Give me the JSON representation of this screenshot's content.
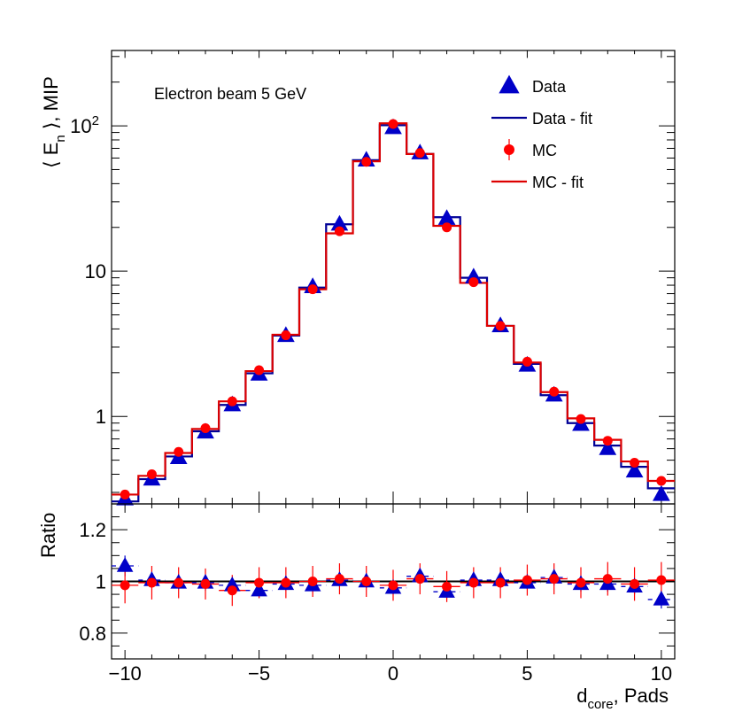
{
  "chart_data": [
    {
      "panel": "main",
      "type": "line",
      "scale": "log",
      "ylabel": "⟨ E",
      "ylabel_sub": "n",
      "ylabel_suffix": " ⟩, MIP",
      "annotation": "Electron beam 5 GeV",
      "xlim": [
        -10.5,
        10.5
      ],
      "ylim": [
        0.25,
        330
      ],
      "yticks": [
        {
          "value": 1,
          "label": "1"
        },
        {
          "value": 10,
          "label": "10"
        },
        {
          "value": 100,
          "label": "10",
          "sup": "2"
        }
      ],
      "x": [
        -10,
        -9,
        -8,
        -7,
        -6,
        -5,
        -4,
        -3,
        -2,
        -1,
        0,
        1,
        2,
        3,
        4,
        5,
        6,
        7,
        8,
        9,
        10
      ],
      "series": [
        {
          "name": "Data",
          "color": "#0000c8",
          "marker": "triangle",
          "values": [
            0.27,
            0.37,
            0.52,
            0.78,
            1.2,
            1.95,
            3.6,
            7.8,
            21,
            58,
            97,
            65,
            23,
            9.1,
            4.2,
            2.25,
            1.4,
            0.88,
            0.6,
            0.42,
            0.29
          ]
        },
        {
          "name": "Data - fit",
          "color": "#000096",
          "style": "step",
          "values": [
            0.26,
            0.37,
            0.53,
            0.79,
            1.2,
            1.98,
            3.6,
            7.7,
            21,
            58,
            101,
            64,
            23.5,
            9.0,
            4.2,
            2.3,
            1.4,
            0.9,
            0.63,
            0.45,
            0.32
          ]
        },
        {
          "name": "MC",
          "color": "#ff0000",
          "marker": "circle",
          "values": [
            0.29,
            0.4,
            0.57,
            0.83,
            1.27,
            2.08,
            3.62,
            7.5,
            18.8,
            56.5,
            103,
            65,
            20,
            8.4,
            4.2,
            2.38,
            1.48,
            0.96,
            0.68,
            0.48,
            0.36
          ]
        },
        {
          "name": "MC - fit",
          "color": "#dd0000",
          "style": "step",
          "values": [
            0.29,
            0.39,
            0.56,
            0.82,
            1.27,
            2.05,
            3.65,
            7.5,
            18.2,
            57,
            104,
            64,
            20.5,
            8.3,
            4.2,
            2.35,
            1.47,
            0.97,
            0.69,
            0.49,
            0.36
          ]
        }
      ],
      "legend": [
        "Data",
        "Data - fit",
        "MC",
        "MC - fit"
      ],
      "legend_position": "top-right"
    },
    {
      "panel": "ratio",
      "type": "scatter",
      "ylabel": "Ratio",
      "xlabel": "d",
      "xlabel_sub": "core",
      "xlabel_suffix": ", Pads",
      "xlim": [
        -10.5,
        10.5
      ],
      "ylim": [
        0.7,
        1.3
      ],
      "reference_line": 1,
      "xticks": [
        {
          "value": -10,
          "label": "−10"
        },
        {
          "value": -5,
          "label": "−5"
        },
        {
          "value": 0,
          "label": "0"
        },
        {
          "value": 5,
          "label": "5"
        },
        {
          "value": 10,
          "label": "10"
        }
      ],
      "yticks": [
        {
          "value": 0.8,
          "label": "0.8"
        },
        {
          "value": 1,
          "label": "1"
        },
        {
          "value": 1.2,
          "label": "1.2"
        }
      ],
      "x": [
        -10,
        -9,
        -8,
        -7,
        -6,
        -5,
        -4,
        -3,
        -2,
        -1,
        0,
        1,
        2,
        3,
        4,
        5,
        6,
        7,
        8,
        9,
        10
      ],
      "series": [
        {
          "name": "Data",
          "color": "#0000c8",
          "marker": "triangle",
          "values": [
            1.06,
            1.005,
            0.995,
            0.995,
            0.985,
            0.965,
            0.99,
            0.985,
            1.005,
            1.0,
            0.975,
            1.02,
            0.96,
            1.005,
            1.005,
            0.995,
            1.015,
            0.99,
            0.99,
            0.98,
            0.93
          ],
          "errors": [
            0.04,
            0.03,
            0.025,
            0.03,
            0.025,
            0.03,
            0.025,
            0.025,
            0.025,
            0.025,
            0.025,
            0.025,
            0.025,
            0.025,
            0.03,
            0.025,
            0.03,
            0.03,
            0.03,
            0.03,
            0.035
          ]
        },
        {
          "name": "MC",
          "color": "#ff0000",
          "marker": "circle",
          "values": [
            0.985,
            0.995,
            0.995,
            0.99,
            0.965,
            0.995,
            0.995,
            1.0,
            1.01,
            1.0,
            0.985,
            1.01,
            0.98,
            0.995,
            0.995,
            1.005,
            1.01,
            0.995,
            1.01,
            0.99,
            1.005
          ],
          "errors": [
            0.07,
            0.065,
            0.06,
            0.06,
            0.06,
            0.06,
            0.06,
            0.06,
            0.06,
            0.06,
            0.06,
            0.06,
            0.06,
            0.06,
            0.06,
            0.06,
            0.06,
            0.06,
            0.065,
            0.065,
            0.07
          ]
        }
      ]
    }
  ]
}
